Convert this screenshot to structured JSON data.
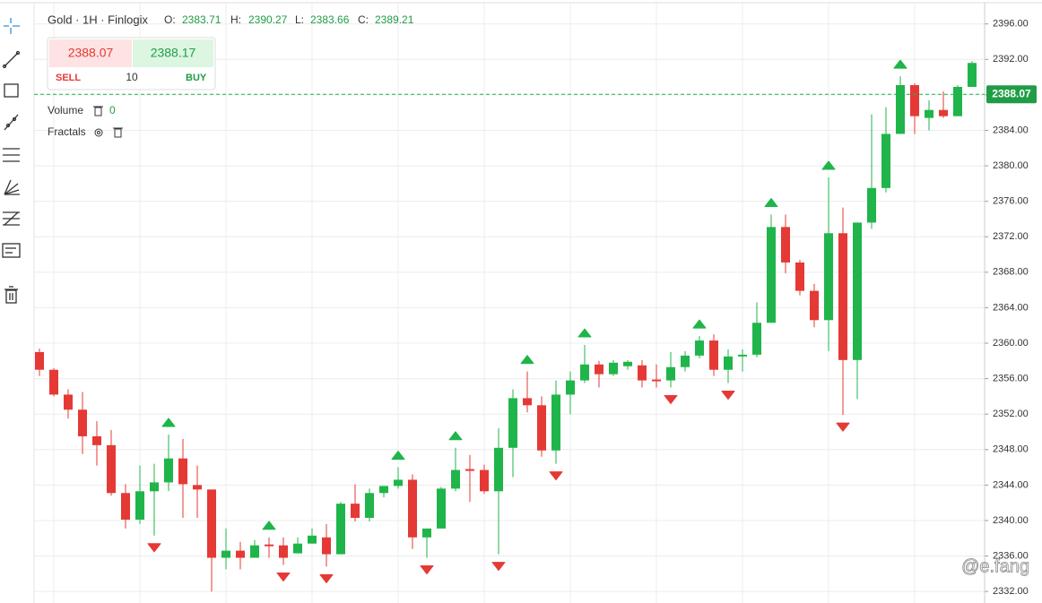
{
  "chart_data": {
    "type": "candlestick",
    "title": "Gold · 1H · Finlogix",
    "header_values": [
      {
        "label": "O:",
        "value": 2383.71
      },
      {
        "label": "H:",
        "value": 2390.27
      },
      {
        "label": "L:",
        "value": 2383.66
      },
      {
        "label": "C:",
        "value": 2389.21
      }
    ],
    "trade": {
      "sell_price": 2388.07,
      "buy_price": 2388.17,
      "sell_label": "SELL",
      "buy_label": "BUY",
      "quantity": 10
    },
    "indicators": [
      {
        "name": "Volume",
        "value": 0
      },
      {
        "name": "Fractals"
      }
    ],
    "watermark": "@e.fang",
    "up_color": "#1fb54a",
    "down_color": "#e53935",
    "open": [
      2359.0,
      2357.0,
      2354.2,
      2352.5,
      2349.5,
      2348.5,
      2343.1,
      2340.1,
      2343.3,
      2344.3,
      2347.0,
      2344.0,
      2343.5,
      2335.8,
      2336.6,
      2335.8,
      2337.3,
      2337.2,
      2336.3,
      2337.4,
      2338.1,
      2336.2,
      2341.9,
      2340.3,
      2343.1,
      2343.9,
      2344.6,
      2338.1,
      2339.1,
      2343.6,
      2345.8,
      2345.7,
      2343.3,
      2348.2,
      2353.8,
      2353.0,
      2347.9,
      2354.2,
      2355.8,
      2357.6,
      2356.5,
      2357.4,
      2357.5,
      2355.9,
      2355.8,
      2357.3,
      2358.6,
      2360.3,
      2357.0,
      2358.5,
      2358.7,
      2362.3,
      2373.1,
      2369.1,
      2365.9,
      2362.6,
      2372.4,
      2358.1,
      2373.6,
      2377.5,
      2383.6,
      2389.1,
      2385.4,
      2386.3,
      2385.6,
      2388.9
    ],
    "high": [
      2359.4,
      2357.2,
      2354.8,
      2354.5,
      2351.2,
      2350.2,
      2344.1,
      2346.2,
      2346.4,
      2349.7,
      2349.2,
      2346.2,
      2343.5,
      2339.1,
      2337.6,
      2337.8,
      2338.1,
      2338.1,
      2338.1,
      2339.1,
      2339.6,
      2342.1,
      2344.1,
      2343.6,
      2343.9,
      2346.0,
      2345.2,
      2338.8,
      2343.8,
      2348.2,
      2347.4,
      2346.3,
      2350.4,
      2354.8,
      2356.8,
      2354.0,
      2355.8,
      2356.8,
      2359.8,
      2358.0,
      2358.1,
      2358.1,
      2358.1,
      2357.6,
      2359.0,
      2359.1,
      2360.8,
      2361.0,
      2359.3,
      2359.3,
      2364.6,
      2374.5,
      2374.5,
      2369.4,
      2366.7,
      2378.7,
      2375.3,
      2373.6,
      2385.8,
      2386.6,
      2390.1,
      2389.3,
      2387.4,
      2388.4,
      2389.1,
      2391.8
    ],
    "low": [
      2356.3,
      2354.0,
      2351.5,
      2347.5,
      2346.2,
      2342.8,
      2339.1,
      2339.6,
      2338.3,
      2343.3,
      2340.3,
      2340.3,
      2332.0,
      2334.5,
      2334.5,
      2335.8,
      2335.8,
      2335.0,
      2336.3,
      2337.4,
      2334.8,
      2336.2,
      2339.9,
      2339.9,
      2342.6,
      2343.6,
      2336.8,
      2335.8,
      2339.1,
      2343.3,
      2342.1,
      2343.0,
      2336.2,
      2344.9,
      2352.2,
      2347.2,
      2346.4,
      2352.0,
      2355.5,
      2355.0,
      2356.3,
      2357.0,
      2355.0,
      2355.0,
      2355.0,
      2356.8,
      2358.3,
      2356.3,
      2355.5,
      2356.8,
      2358.4,
      2362.3,
      2367.9,
      2365.4,
      2361.8,
      2359.1,
      2351.9,
      2353.7,
      2372.9,
      2377.0,
      2383.6,
      2383.6,
      2384.0,
      2385.4,
      2385.6,
      2388.9
    ],
    "close": [
      2357.0,
      2354.2,
      2352.5,
      2349.5,
      2348.5,
      2343.1,
      2340.1,
      2343.3,
      2344.3,
      2347.0,
      2344.1,
      2343.5,
      2335.8,
      2336.6,
      2335.8,
      2337.2,
      2337.1,
      2335.8,
      2337.4,
      2338.3,
      2336.2,
      2341.9,
      2340.3,
      2343.1,
      2343.9,
      2344.6,
      2338.1,
      2339.1,
      2343.6,
      2345.7,
      2345.6,
      2343.3,
      2348.2,
      2353.8,
      2353.0,
      2347.9,
      2354.2,
      2355.8,
      2357.6,
      2356.5,
      2357.8,
      2357.9,
      2355.8,
      2355.7,
      2357.3,
      2358.6,
      2360.3,
      2357.0,
      2358.5,
      2358.7,
      2362.3,
      2373.1,
      2369.1,
      2365.9,
      2362.6,
      2372.4,
      2358.1,
      2373.6,
      2377.5,
      2383.6,
      2389.1,
      2385.6,
      2386.3,
      2385.6,
      2388.9,
      2391.6
    ],
    "fractals_up": [
      9,
      16,
      25,
      29,
      34,
      38,
      46,
      51,
      55,
      60
    ],
    "fractals_down": [
      8,
      17,
      20,
      27,
      32,
      36,
      44,
      48,
      56
    ],
    "current_price": 2388.07,
    "ylim": [
      2330.7,
      2398.7
    ],
    "yticks": [
      {
        "value": 2396,
        "label": "2396.00"
      },
      {
        "value": 2392,
        "label": "2392.00"
      },
      {
        "value": 2388,
        "label": "2388.00"
      },
      {
        "value": 2384,
        "label": "2384.00"
      },
      {
        "value": 2380,
        "label": "2380.00"
      },
      {
        "value": 2376,
        "label": "2376.00"
      },
      {
        "value": 2372,
        "label": "2372.00"
      },
      {
        "value": 2368,
        "label": "2368.00"
      },
      {
        "value": 2364,
        "label": "2364.00"
      },
      {
        "value": 2360,
        "label": "2360.00"
      },
      {
        "value": 2356,
        "label": "2356.00"
      },
      {
        "value": 2352,
        "label": "2352.00"
      },
      {
        "value": 2348,
        "label": "2348.00"
      },
      {
        "value": 2344,
        "label": "2344.00"
      },
      {
        "value": 2340,
        "label": "2340.00"
      },
      {
        "value": 2336,
        "label": "2336.00"
      },
      {
        "value": 2332,
        "label": "2332.00"
      }
    ],
    "grid": true
  }
}
